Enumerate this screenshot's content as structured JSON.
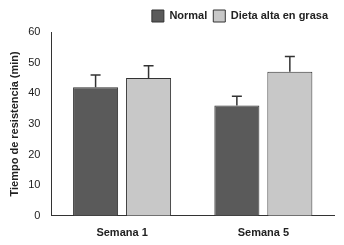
{
  "chart_data": {
    "type": "bar",
    "y_label": "Tiempo de resistencia (min)",
    "categories": [
      "Semana 1",
      "Semana 5"
    ],
    "series": [
      {
        "name": "Normal",
        "color": "#5a5a5a",
        "values": [
          42,
          36
        ],
        "errors": [
          4,
          3
        ]
      },
      {
        "name": "Dieta alta en grasa",
        "color": "#c8c8c8",
        "values": [
          45,
          47
        ],
        "errors": [
          4,
          5
        ]
      }
    ],
    "ylim": [
      0,
      60
    ],
    "yticks": [
      0,
      10,
      20,
      30,
      40,
      50,
      60
    ],
    "grid": false,
    "legend": "upper right"
  }
}
